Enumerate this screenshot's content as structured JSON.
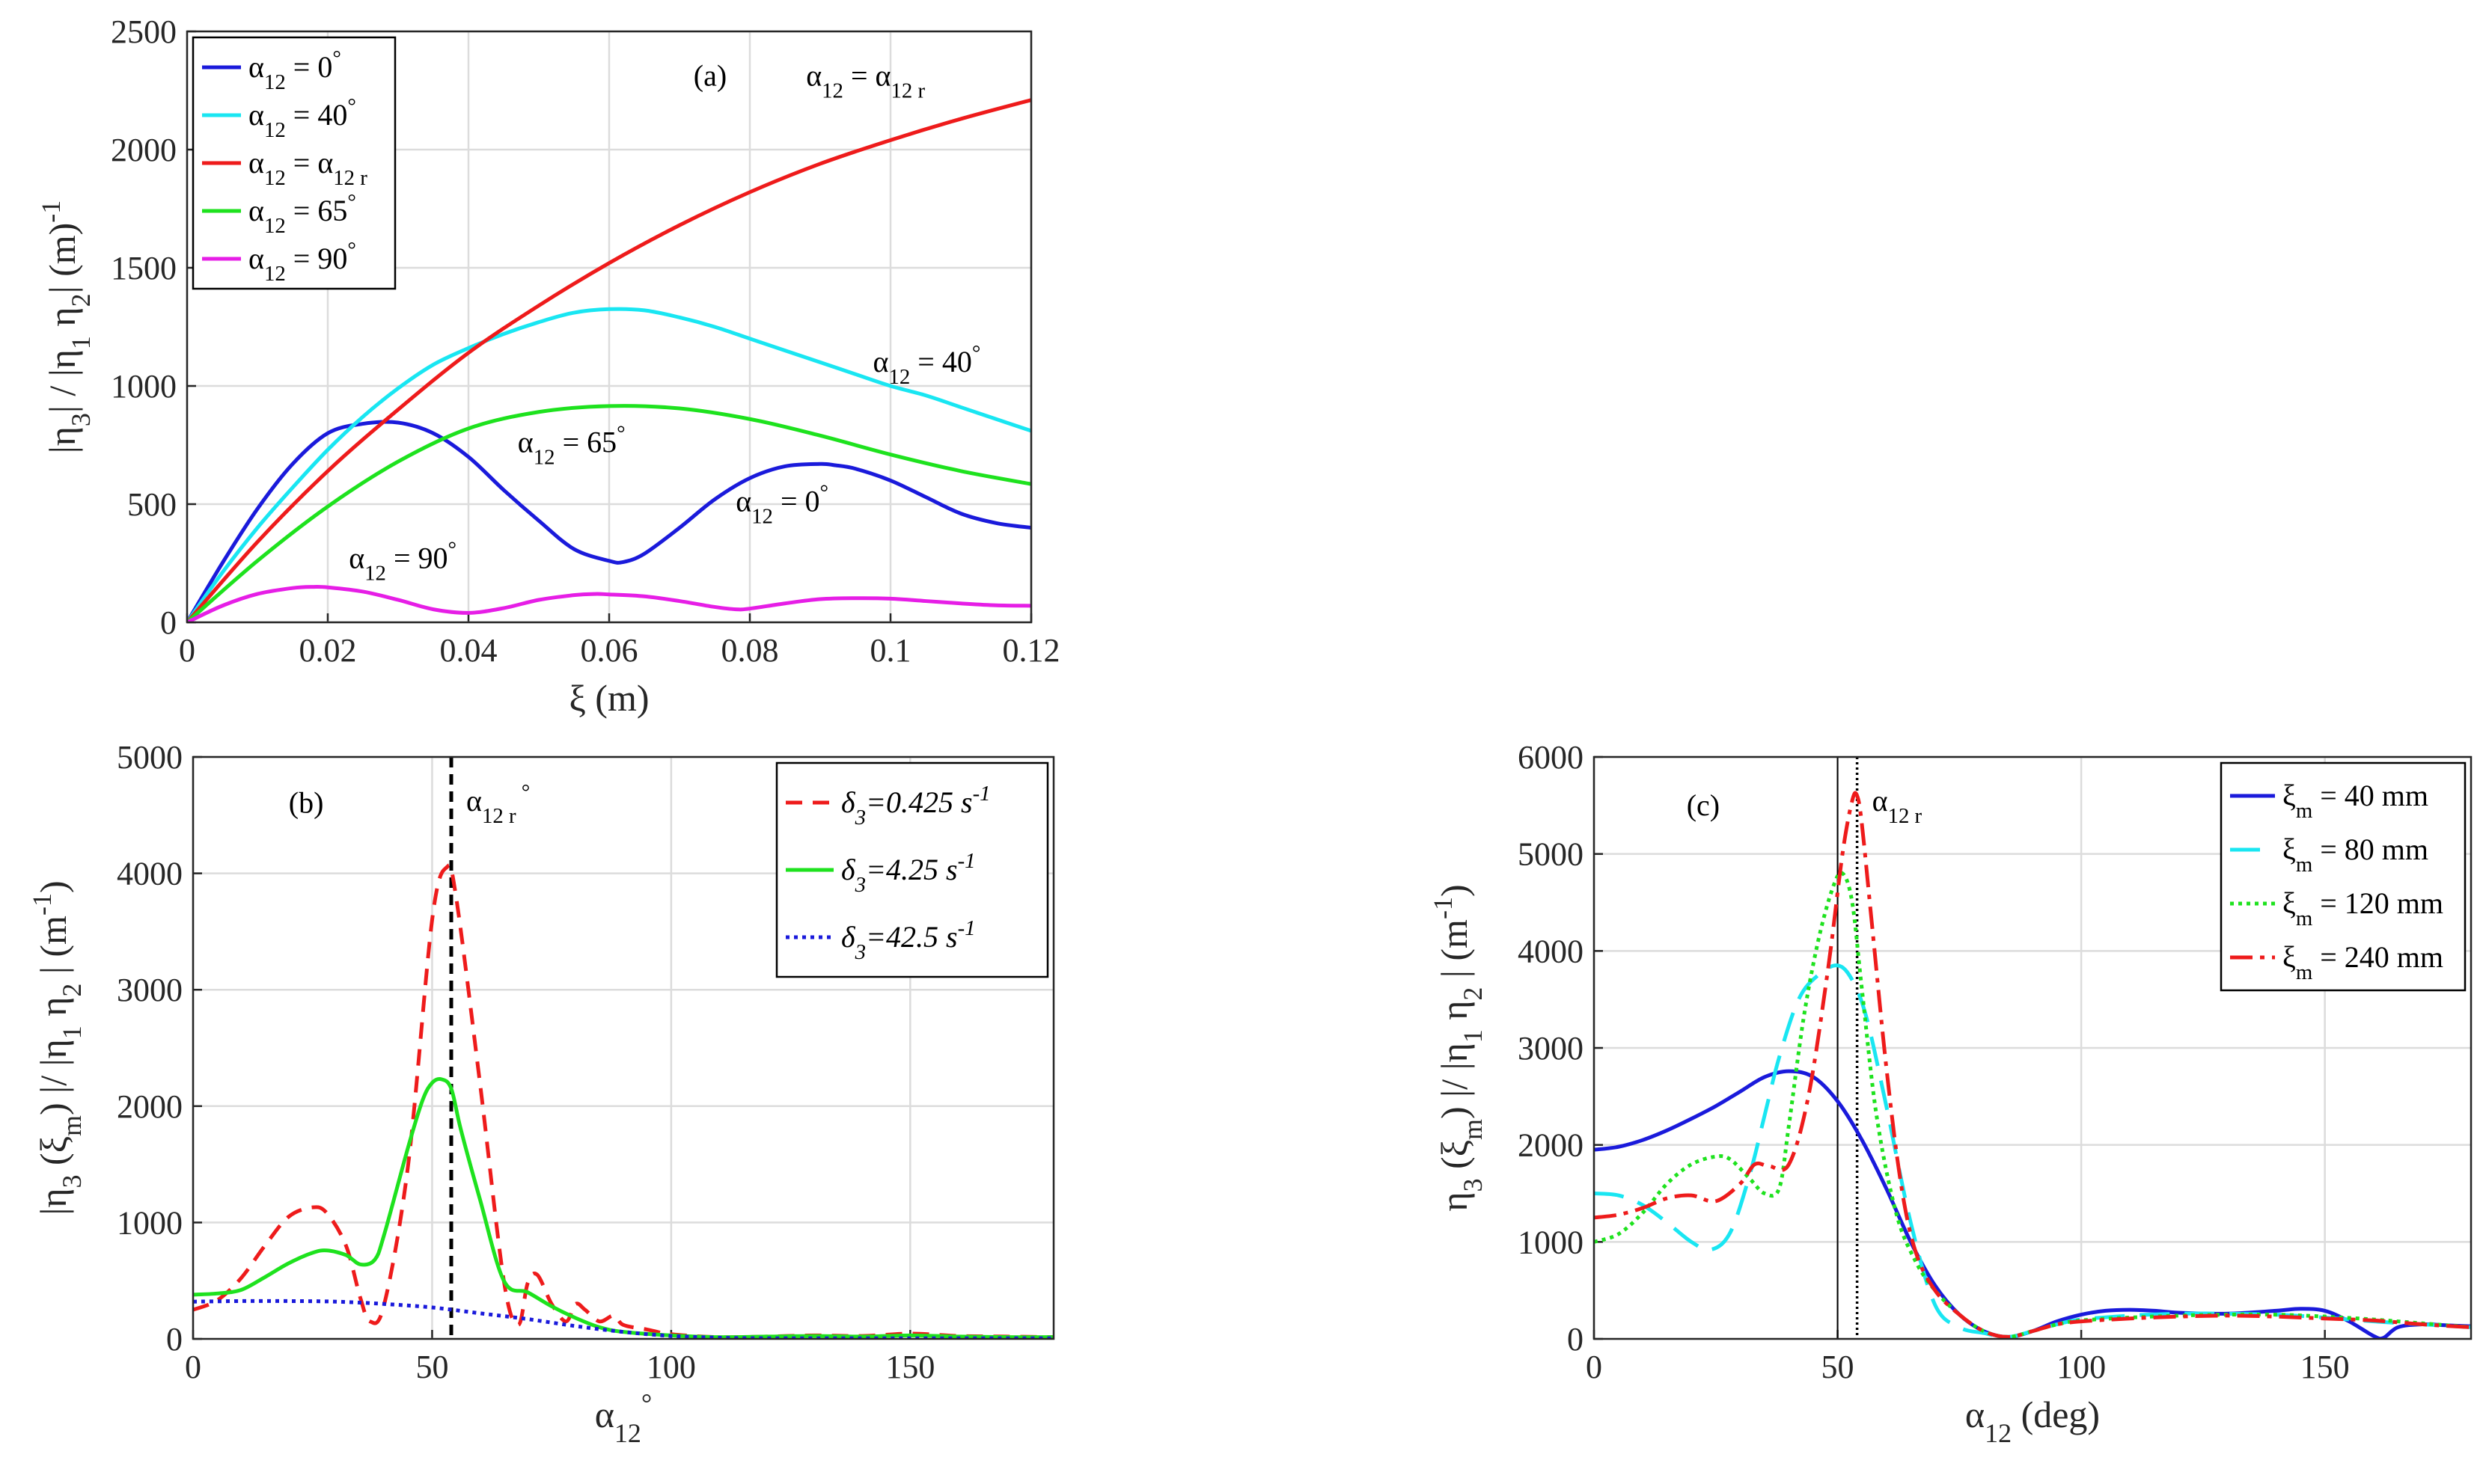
{
  "chart_data": [
    {
      "panel": "(a)",
      "type": "line",
      "xlim": [
        0,
        0.12
      ],
      "ylim": [
        0,
        2500
      ],
      "xticks": [
        "0",
        "0.02",
        "0.04",
        "0.06",
        "0.08",
        "0.1",
        "0.12"
      ],
      "yticks": [
        "0",
        "500",
        "1000",
        "1500",
        "2000",
        "2500"
      ],
      "grid": true,
      "legend_position": "top-left",
      "xlabel": {
        "main": "ξ",
        "rest": " (m)"
      },
      "ylabel": {
        "p1": "|η",
        "s1": "3",
        "p2": "| / |η",
        "s2": "1",
        "p3": " η",
        "s3": "2",
        "p4": "| (m",
        "sup": "-1",
        "p5": ")"
      },
      "series": [
        {
          "name": "α12 = 0°",
          "color": "#1a1adb",
          "legend": {
            "sym": "α",
            "sub": "12",
            "eq": " = 0",
            "sup": "°"
          },
          "x": [
            0,
            0.005,
            0.01,
            0.015,
            0.02,
            0.025,
            0.03,
            0.035,
            0.04,
            0.045,
            0.05,
            0.055,
            0.06,
            0.062,
            0.065,
            0.07,
            0.075,
            0.08,
            0.085,
            0.09,
            0.092,
            0.095,
            0.1,
            0.105,
            0.11,
            0.115,
            0.12
          ],
          "y": [
            0,
            250,
            480,
            670,
            800,
            840,
            845,
            800,
            700,
            560,
            430,
            310,
            260,
            255,
            290,
            400,
            520,
            610,
            660,
            670,
            665,
            650,
            600,
            530,
            460,
            420,
            400
          ]
        },
        {
          "name": "α12 = 40°",
          "color": "#19e6f2",
          "legend": {
            "sym": "α",
            "sub": "12",
            "eq": " = 40",
            "sup": "°"
          },
          "x": [
            0,
            0.005,
            0.01,
            0.015,
            0.02,
            0.025,
            0.03,
            0.035,
            0.04,
            0.045,
            0.05,
            0.055,
            0.06,
            0.065,
            0.07,
            0.075,
            0.08,
            0.085,
            0.09,
            0.095,
            0.1,
            0.105,
            0.11,
            0.115,
            0.12
          ],
          "y": [
            0,
            210,
            400,
            570,
            730,
            870,
            990,
            1090,
            1160,
            1220,
            1270,
            1310,
            1325,
            1320,
            1290,
            1250,
            1200,
            1150,
            1100,
            1050,
            1000,
            960,
            910,
            860,
            810
          ]
        },
        {
          "name": "α12 = α12 r",
          "color": "#ee1b1b",
          "legend": {
            "sym": "α",
            "sub": "12",
            "eq": " = α",
            "sub2": "12 r"
          },
          "x": [
            0,
            0.01,
            0.02,
            0.03,
            0.04,
            0.05,
            0.06,
            0.07,
            0.08,
            0.09,
            0.1,
            0.11,
            0.12
          ],
          "y": [
            0,
            340,
            640,
            900,
            1140,
            1340,
            1520,
            1680,
            1820,
            1940,
            2040,
            2130,
            2210
          ]
        },
        {
          "name": "α12 = 65°",
          "color": "#1ee21e",
          "legend": {
            "sym": "α",
            "sub": "12",
            "eq": " = 65",
            "sup": "°"
          },
          "x": [
            0,
            0.01,
            0.02,
            0.03,
            0.04,
            0.05,
            0.06,
            0.07,
            0.08,
            0.09,
            0.1,
            0.11,
            0.12
          ],
          "y": [
            0,
            260,
            490,
            680,
            820,
            890,
            915,
            905,
            860,
            790,
            710,
            640,
            585
          ]
        },
        {
          "name": "α12 = 90°",
          "color": "#e61ee6",
          "legend": {
            "sym": "α",
            "sub": "12",
            "eq": " = 90",
            "sup": "°"
          },
          "x": [
            0,
            0.005,
            0.01,
            0.015,
            0.018,
            0.02,
            0.025,
            0.03,
            0.035,
            0.04,
            0.045,
            0.05,
            0.055,
            0.058,
            0.06,
            0.065,
            0.07,
            0.075,
            0.078,
            0.08,
            0.085,
            0.09,
            0.095,
            0.1,
            0.105,
            0.11,
            0.115,
            0.12
          ],
          "y": [
            0,
            70,
            120,
            145,
            150,
            148,
            130,
            95,
            55,
            40,
            60,
            95,
            115,
            120,
            118,
            110,
            90,
            65,
            55,
            58,
            80,
            98,
            102,
            100,
            90,
            80,
            72,
            70
          ]
        }
      ],
      "annotations": [
        {
          "text": "(a)",
          "x": 0.072,
          "y": 2270
        },
        {
          "sym": "α",
          "sub": "12",
          "eq": " = α",
          "sub2": "12 r",
          "x": 0.088,
          "y": 2270
        },
        {
          "sym": "α",
          "sub": "12",
          "eq": " = 40",
          "sup": "°",
          "x": 0.0975,
          "y": 1060
        },
        {
          "sym": "α",
          "sub": "12",
          "eq": " = 65",
          "sup": "°",
          "x": 0.047,
          "y": 720
        },
        {
          "sym": "α",
          "sub": "12",
          "eq": " = 0",
          "sup": "°",
          "x": 0.078,
          "y": 470
        },
        {
          "sym": "α",
          "sub": "12",
          "eq": " = 90",
          "sup": "°",
          "x": 0.023,
          "y": 230
        }
      ]
    },
    {
      "panel": "(b)",
      "type": "line",
      "xlim": [
        0,
        180
      ],
      "ylim": [
        0,
        5000
      ],
      "xticks": [
        "0",
        "50",
        "100",
        "150"
      ],
      "yticks": [
        "0",
        "1000",
        "2000",
        "3000",
        "4000",
        "5000"
      ],
      "grid": true,
      "legend_position": "top-right",
      "xlabel": {
        "sym": "α",
        "sub": "12",
        "sup": "°"
      },
      "ylabel": {
        "p1": "|η",
        "s1": "3",
        "p2": " (ξ",
        "s2": "m",
        "p3": ") |/ |η",
        "s3": "1",
        "p4": " η",
        "s4": "2",
        "p5": " | (m",
        "sup": "-1",
        "p6": ")"
      },
      "vline": {
        "x": 54,
        "label_sym": "α",
        "label_sub": "12 r",
        "label_sup": " °"
      },
      "series": [
        {
          "name": "δ3=0.425 s-1",
          "color": "#ee1b1b",
          "dash": "22,14",
          "legend": {
            "sym": "δ",
            "sub": "3",
            "eq": "=0.425 s",
            "sup": "-1"
          },
          "x": [
            0,
            5,
            10,
            15,
            20,
            25,
            28,
            32,
            35,
            37,
            40,
            45,
            50,
            53,
            55,
            60,
            65,
            68,
            70,
            72,
            75,
            78,
            80,
            82,
            85,
            88,
            90,
            95,
            100,
            110,
            120,
            130,
            140,
            150,
            160,
            170,
            180
          ],
          "y": [
            250,
            330,
            520,
            800,
            1050,
            1130,
            1080,
            800,
            350,
            150,
            300,
            1500,
            3600,
            4050,
            3800,
            2200,
            500,
            120,
            480,
            550,
            300,
            150,
            300,
            250,
            150,
            200,
            120,
            80,
            40,
            15,
            20,
            30,
            25,
            45,
            25,
            20,
            15
          ]
        },
        {
          "name": "δ3=4.25 s-1",
          "color": "#1ee21e",
          "dash": "",
          "legend": {
            "sym": "δ",
            "sub": "3",
            "eq": "=4.25 s",
            "sup": "-1"
          },
          "x": [
            0,
            5,
            10,
            15,
            20,
            25,
            28,
            32,
            35,
            38,
            40,
            45,
            48,
            50,
            52,
            54,
            56,
            60,
            65,
            70,
            75,
            80,
            85,
            90,
            100,
            110,
            120,
            130,
            140,
            150,
            160,
            170,
            180
          ],
          "y": [
            380,
            390,
            420,
            530,
            650,
            740,
            760,
            720,
            640,
            680,
            900,
            1650,
            2050,
            2200,
            2230,
            2150,
            1800,
            1200,
            500,
            400,
            280,
            180,
            100,
            60,
            30,
            15,
            20,
            25,
            20,
            30,
            20,
            15,
            15
          ]
        },
        {
          "name": "δ3=42.5 s-1",
          "color": "#1a1adb",
          "dash": "5,6",
          "legend": {
            "sym": "δ",
            "sub": "3",
            "eq": "=42.5 s",
            "sup": "-1"
          },
          "x": [
            0,
            10,
            20,
            30,
            40,
            50,
            60,
            70,
            80,
            90,
            100,
            110,
            120,
            140,
            160,
            180
          ],
          "y": [
            320,
            325,
            325,
            320,
            300,
            270,
            220,
            170,
            110,
            60,
            25,
            10,
            5,
            5,
            5,
            5
          ]
        }
      ],
      "annotations": [
        {
          "text": "(b)",
          "x": 20,
          "y": 4520
        }
      ]
    },
    {
      "panel": "(c)",
      "type": "line",
      "xlim": [
        0,
        180
      ],
      "ylim": [
        0,
        6000
      ],
      "xticks": [
        "0",
        "50",
        "100",
        "150"
      ],
      "yticks": [
        "0",
        "1000",
        "2000",
        "3000",
        "4000",
        "5000",
        "6000"
      ],
      "grid": true,
      "legend_position": "top-right",
      "xlabel": {
        "sym": "α",
        "sub": "12",
        "rest": " (deg)"
      },
      "ylabel": {
        "p1": "η",
        "s1": "3",
        "p2": " (ξ",
        "s2": "m",
        "p3": ") |/ |η",
        "s3": "1",
        "p4": " η",
        "s4": "2",
        "p5": " | (m",
        "sup": "-1",
        "p6": ")"
      },
      "vline": {
        "x": 54,
        "label_sym": "α",
        "label_sub": "12 r",
        "label_sup": ""
      },
      "vline2": {
        "x": 50
      },
      "series": [
        {
          "name": "ξm = 40 mm",
          "color": "#1a1adb",
          "dash": "",
          "legend": {
            "sym": "ξ",
            "sub": "m",
            "eq": " = 40 mm"
          },
          "x": [
            0,
            5,
            10,
            15,
            20,
            25,
            30,
            35,
            40,
            45,
            50,
            55,
            60,
            65,
            70,
            75,
            80,
            85,
            90,
            95,
            100,
            105,
            110,
            115,
            120,
            130,
            140,
            145,
            150,
            155,
            160,
            162,
            165,
            170,
            175,
            180
          ],
          "y": [
            1950,
            1980,
            2050,
            2150,
            2270,
            2400,
            2550,
            2700,
            2760,
            2700,
            2450,
            2050,
            1550,
            1000,
            550,
            250,
            80,
            20,
            80,
            180,
            250,
            290,
            300,
            290,
            270,
            260,
            290,
            310,
            290,
            180,
            30,
            10,
            120,
            150,
            140,
            130
          ]
        },
        {
          "name": "ξm = 80 mm",
          "color": "#19e6f2",
          "dash": "40,20",
          "legend": {
            "sym": "ξ",
            "sub": "m",
            "eq": " = 80 mm"
          },
          "x": [
            0,
            5,
            10,
            15,
            20,
            24,
            28,
            32,
            35,
            38,
            42,
            46,
            50,
            53,
            56,
            60,
            65,
            70,
            75,
            80,
            85,
            90,
            95,
            100,
            110,
            120,
            130,
            140,
            150,
            160,
            170,
            180
          ],
          "y": [
            1500,
            1480,
            1380,
            1200,
            1000,
            920,
            1100,
            1700,
            2300,
            2900,
            3500,
            3750,
            3850,
            3700,
            3300,
            2400,
            1200,
            350,
            120,
            60,
            20,
            80,
            150,
            200,
            240,
            260,
            260,
            250,
            220,
            180,
            150,
            120
          ]
        },
        {
          "name": "ξm = 120 mm",
          "color": "#1ee21e",
          "dash": "5,6",
          "legend": {
            "sym": "ξ",
            "sub": "m",
            "eq": " = 120 mm"
          },
          "x": [
            0,
            5,
            10,
            15,
            20,
            25,
            28,
            32,
            35,
            38,
            40,
            43,
            46,
            49,
            51,
            53,
            55,
            58,
            62,
            66,
            70,
            75,
            80,
            85,
            90,
            95,
            100,
            110,
            120,
            130,
            140,
            150,
            160,
            170,
            180
          ],
          "y": [
            1000,
            1080,
            1300,
            1600,
            1800,
            1880,
            1850,
            1650,
            1500,
            1550,
            2200,
            3300,
            4100,
            4650,
            4800,
            4500,
            3600,
            2300,
            1300,
            800,
            500,
            250,
            80,
            20,
            80,
            150,
            190,
            220,
            240,
            250,
            250,
            230,
            200,
            160,
            120
          ]
        },
        {
          "name": "ξm = 240 mm",
          "color": "#ee1b1b",
          "dash": "30,10,6,10",
          "legend": {
            "sym": "ξ",
            "sub": "m",
            "eq": " = 240 mm"
          },
          "x": [
            0,
            5,
            10,
            15,
            20,
            25,
            30,
            33,
            36,
            40,
            44,
            48,
            51,
            53,
            54,
            55,
            57,
            60,
            63,
            66,
            70,
            75,
            80,
            85,
            90,
            95,
            100,
            110,
            120,
            130,
            140,
            150,
            160,
            170,
            180
          ],
          "y": [
            1250,
            1280,
            1350,
            1450,
            1480,
            1420,
            1600,
            1800,
            1780,
            1800,
            2500,
            3800,
            5000,
            5550,
            5600,
            5300,
            4300,
            2800,
            1600,
            900,
            500,
            250,
            80,
            20,
            80,
            150,
            180,
            210,
            230,
            240,
            230,
            210,
            190,
            150,
            120
          ]
        }
      ],
      "annotations": [
        {
          "text": "(c)",
          "x": 19,
          "y": 5400
        }
      ]
    }
  ]
}
